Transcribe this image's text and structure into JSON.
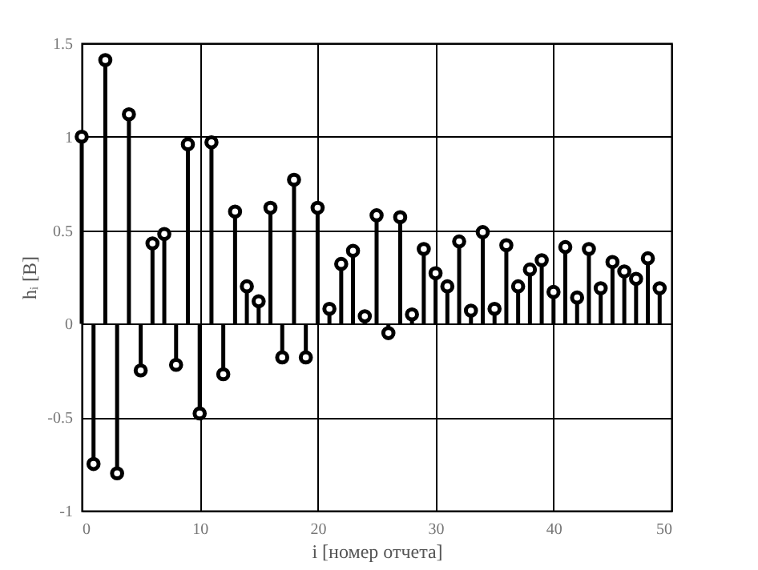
{
  "chart_data": {
    "type": "lollipop",
    "xlabel": "i [номер отчета]",
    "ylabel": "hᵢ [В]",
    "x": [
      0,
      1,
      2,
      3,
      4,
      5,
      6,
      7,
      8,
      9,
      10,
      11,
      12,
      13,
      14,
      15,
      16,
      17,
      18,
      19,
      20,
      21,
      22,
      23,
      24,
      25,
      26,
      27,
      28,
      29,
      30,
      31,
      32,
      33,
      34,
      35,
      36,
      37,
      38,
      39,
      40,
      41,
      42,
      43,
      44,
      45,
      46,
      47,
      48,
      49
    ],
    "values": [
      1.0,
      -0.75,
      1.41,
      -0.8,
      1.12,
      -0.25,
      0.43,
      0.48,
      -0.22,
      0.96,
      -0.48,
      0.97,
      -0.27,
      0.6,
      0.2,
      0.12,
      0.62,
      -0.18,
      0.77,
      -0.18,
      0.62,
      0.08,
      0.32,
      0.39,
      0.04,
      0.58,
      -0.05,
      0.57,
      0.05,
      0.4,
      0.27,
      0.2,
      0.44,
      0.07,
      0.49,
      0.08,
      0.42,
      0.2,
      0.29,
      0.34,
      0.17,
      0.41,
      0.14,
      0.4,
      0.19,
      0.33,
      0.28,
      0.24,
      0.35,
      0.19
    ],
    "color": "#000000",
    "marker": "circle",
    "grid": true,
    "xlim": [
      0,
      50
    ],
    "xticks": [
      0,
      10,
      20,
      30,
      40,
      50
    ],
    "ylim": [
      -1,
      1.5
    ],
    "yticks": [
      -1,
      -0.5,
      0,
      0.5,
      1,
      1.5
    ]
  }
}
